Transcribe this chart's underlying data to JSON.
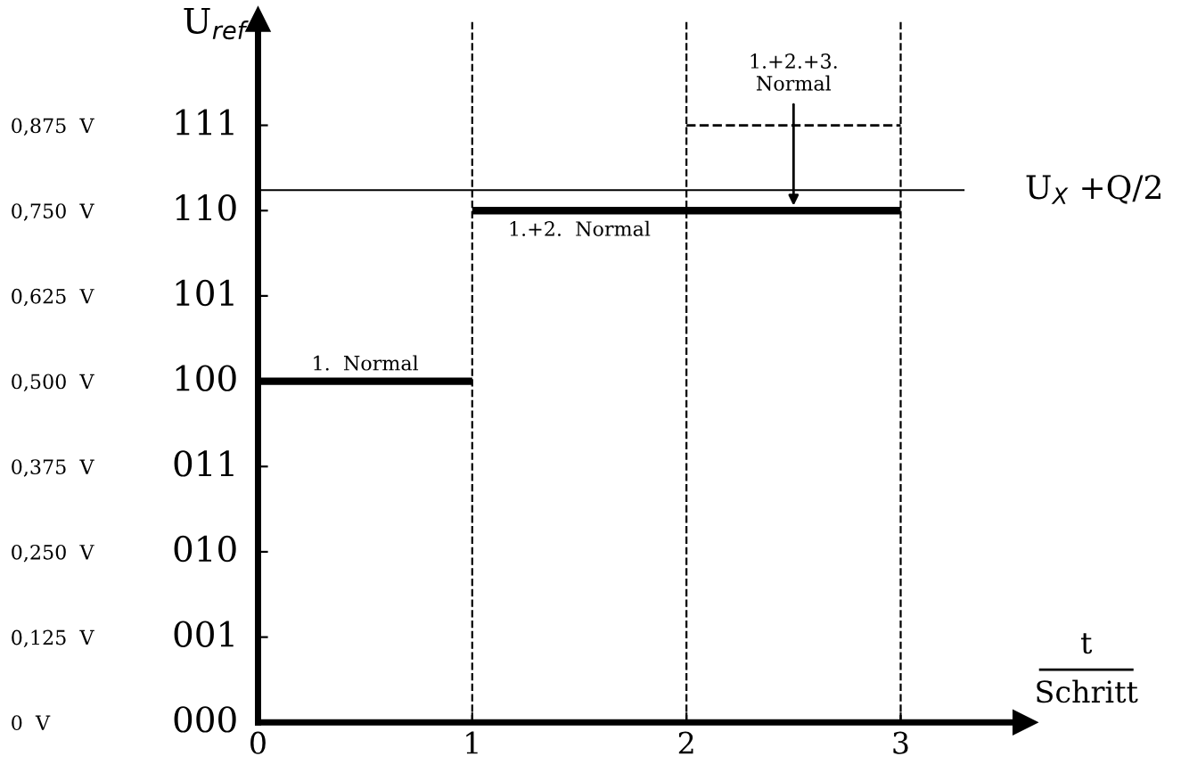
{
  "chart_data": {
    "type": "line",
    "ylabel": "U$_{ref}$",
    "xlabel": "t\nSchritt",
    "xlim": [
      0,
      3.58
    ],
    "xticks": [
      0,
      1,
      2,
      3
    ],
    "ylim": [
      0,
      1.03
    ],
    "yticks": [
      {
        "value": 0,
        "label": "0  V"
      },
      {
        "value": 0.125,
        "label": "0,125  V"
      },
      {
        "value": 0.25,
        "label": "0,250  V"
      },
      {
        "value": 0.375,
        "label": "0,375  V"
      },
      {
        "value": 0.5,
        "label": "0,500  V"
      },
      {
        "value": 0.625,
        "label": "0,625  V"
      },
      {
        "value": 0.75,
        "label": "0,750  V"
      },
      {
        "value": 0.875,
        "label": "0,875  V"
      }
    ],
    "series": [
      {
        "color": "#000000",
        "x": [
          0,
          1
        ],
        "values": [
          0.5,
          0.5
        ]
      },
      {
        "color": "#000000",
        "x": [
          1,
          3
        ],
        "values": [
          0.75,
          0.75
        ]
      },
      {
        "color": "#000000",
        "x": [
          2,
          3
        ],
        "values": [
          0.875,
          0.875
        ],
        "line_style": "dashed"
      }
    ],
    "ref_lines": [
      {
        "axis": "y",
        "value": 0.78,
        "label": "U$_{X}$ +Q/2",
        "color": "#000000"
      },
      {
        "axis": "x",
        "value": 1,
        "color": "#000000",
        "line_style": "dashed"
      },
      {
        "axis": "x",
        "value": 2,
        "color": "#000000",
        "line_style": "dashed"
      },
      {
        "axis": "x",
        "value": 3,
        "color": "#000000",
        "line_style": "dashed"
      }
    ],
    "annotations": [
      "000",
      "001",
      "010",
      "011",
      "100",
      "101",
      "110",
      "111",
      {
        "text": "1.  Normal",
        "x": 0.5,
        "y": 0.5
      },
      {
        "text": "1.+2.  Normal",
        "x": 1.5,
        "y": 0.75
      },
      {
        "text": "1.+2.+3.\nNormal",
        "x": 2.5,
        "y": 0.75
      }
    ],
    "grid": false,
    "legend": false,
    "marker": "none",
    "line_style": "solid"
  }
}
